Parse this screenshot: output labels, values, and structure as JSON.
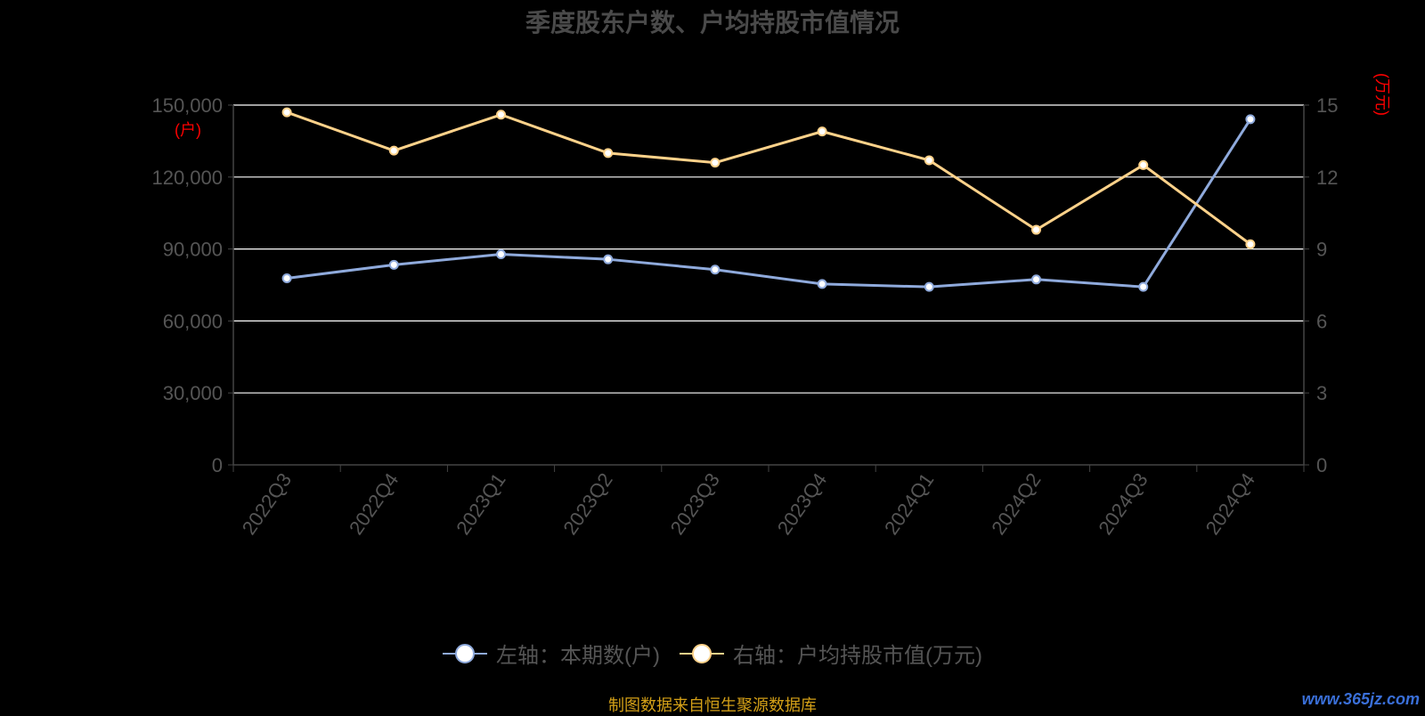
{
  "title": "季度股东户数、户均持股市值情况",
  "units": {
    "left": "(户)",
    "right": "(万元)"
  },
  "chart_data": {
    "type": "line",
    "categories": [
      "2022Q3",
      "2022Q4",
      "2023Q1",
      "2023Q2",
      "2023Q3",
      "2023Q4",
      "2024Q1",
      "2024Q2",
      "2024Q3",
      "2024Q4"
    ],
    "series": [
      {
        "name": "左轴：本期数(户)",
        "axis": "left",
        "color": "#8faadc",
        "values": [
          77800,
          83400,
          87800,
          85700,
          81400,
          75400,
          74200,
          77300,
          74200,
          144100
        ]
      },
      {
        "name": "右轴：户均持股市值(万元)",
        "axis": "right",
        "color": "#ffd28a",
        "values": [
          14.7,
          13.1,
          14.6,
          13.0,
          12.6,
          13.9,
          12.7,
          9.8,
          12.5,
          9.2
        ]
      }
    ],
    "left_axis": {
      "min": 0,
      "max": 150000,
      "ticks": [
        0,
        30000,
        60000,
        90000,
        120000,
        150000
      ],
      "tick_labels": [
        "0",
        "30,000",
        "60,000",
        "90,000",
        "120,000",
        "150,000"
      ]
    },
    "right_axis": {
      "min": 0,
      "max": 15,
      "ticks": [
        0,
        3,
        6,
        9,
        12,
        15
      ],
      "tick_labels": [
        "0",
        "3",
        "6",
        "9",
        "12",
        "15"
      ]
    },
    "grid": true,
    "legend_position": "bottom-center"
  },
  "colors": {
    "axis_text": "#555555",
    "grid": "#ffffff",
    "unit_text": "#ff0000",
    "source_text": "#d4a017"
  },
  "source_note": "制图数据来自恒生聚源数据库",
  "watermark": "www.365jz.com"
}
